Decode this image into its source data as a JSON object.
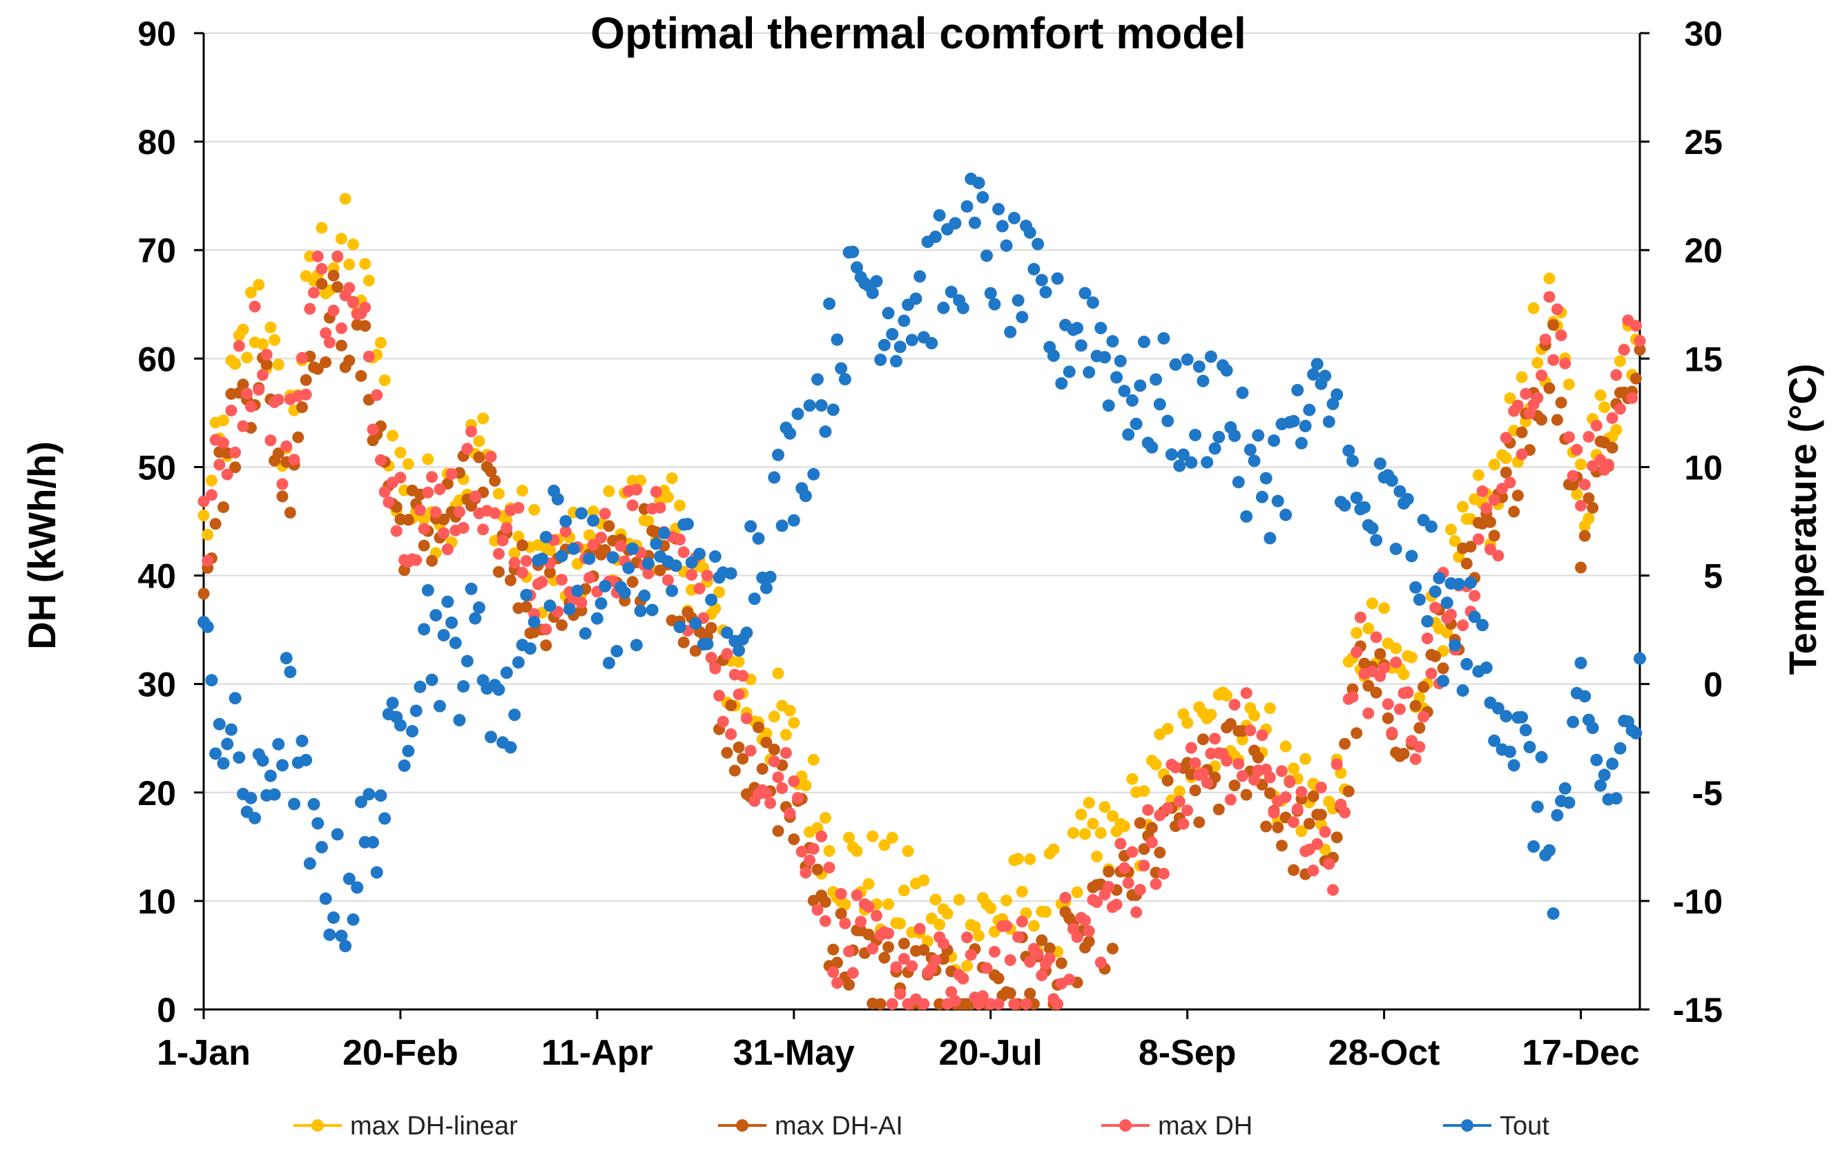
{
  "chart_data": {
    "type": "scatter",
    "title": "Optimal thermal comfort model",
    "ylabel": "DH (kWh/h)",
    "y2label": "Temperature (°C)",
    "xlabel": "",
    "xlim": [
      1,
      366
    ],
    "ylim": [
      0,
      90
    ],
    "y2lim": [
      -15,
      30
    ],
    "grid": true,
    "legend_position": "bottom",
    "x_ticks": [
      {
        "day": 1,
        "label": "1-Jan"
      },
      {
        "day": 51,
        "label": "20-Feb"
      },
      {
        "day": 101,
        "label": "11-Apr"
      },
      {
        "day": 151,
        "label": "31-May"
      },
      {
        "day": 201,
        "label": "20-Jul"
      },
      {
        "day": 251,
        "label": "8-Sep"
      },
      {
        "day": 301,
        "label": "28-Oct"
      },
      {
        "day": 351,
        "label": "17-Dec"
      }
    ],
    "y_ticks": [
      "0",
      "10",
      "20",
      "30",
      "40",
      "50",
      "60",
      "70",
      "80",
      "90"
    ],
    "y2_ticks": [
      "-15",
      "-10",
      "-5",
      "0",
      "5",
      "10",
      "15",
      "20",
      "25",
      "30"
    ],
    "series": [
      {
        "name": "max DH-linear",
        "color": "#FFC000",
        "axis": "left",
        "approx_daily_profile": {
          "days": [
            1,
            8,
            15,
            22,
            29,
            36,
            43,
            50,
            57,
            64,
            71,
            78,
            85,
            92,
            99,
            106,
            113,
            120,
            127,
            134,
            141,
            148,
            155,
            162,
            169,
            176,
            183,
            190,
            197,
            204,
            211,
            218,
            225,
            232,
            239,
            246,
            253,
            260,
            267,
            274,
            281,
            288,
            295,
            302,
            309,
            316,
            323,
            330,
            337,
            344,
            351,
            358,
            365
          ],
          "values": [
            44,
            56,
            66,
            52,
            68,
            71,
            64,
            50,
            46,
            48,
            52,
            45,
            42,
            40,
            42,
            44,
            46,
            44,
            40,
            32,
            28,
            26,
            20,
            14,
            12,
            11,
            9,
            7,
            8,
            9,
            10,
            10,
            14,
            15,
            18,
            22,
            24,
            26,
            28,
            22,
            20,
            18,
            34,
            32,
            30,
            38,
            43,
            48,
            58,
            64,
            48,
            55,
            64
          ]
        }
      },
      {
        "name": "max DH-AI",
        "color": "#C55A11",
        "axis": "left",
        "approx_daily_profile": {
          "days": [
            1,
            8,
            15,
            22,
            29,
            36,
            43,
            50,
            57,
            64,
            71,
            78,
            85,
            92,
            99,
            106,
            113,
            120,
            127,
            134,
            141,
            148,
            155,
            162,
            169,
            176,
            183,
            190,
            197,
            204,
            211,
            218,
            225,
            232,
            239,
            246,
            253,
            260,
            267,
            274,
            281,
            288,
            295,
            302,
            309,
            316,
            323,
            330,
            337,
            344,
            351,
            358,
            365
          ],
          "values": [
            42,
            53,
            60,
            48,
            63,
            64,
            58,
            45,
            44,
            46,
            48,
            42,
            38,
            38,
            40,
            41,
            42,
            40,
            36,
            28,
            22,
            20,
            14,
            6,
            4,
            3,
            2,
            1,
            2,
            2,
            3,
            4,
            6,
            9,
            13,
            17,
            20,
            22,
            24,
            18,
            16,
            15,
            30,
            28,
            26,
            34,
            40,
            44,
            55,
            60,
            45,
            53,
            60
          ]
        }
      },
      {
        "name": "max DH",
        "color": "#FF5B5B",
        "axis": "left",
        "approx_daily_profile": {
          "days": [
            1,
            8,
            15,
            22,
            29,
            36,
            43,
            50,
            57,
            64,
            71,
            78,
            85,
            92,
            99,
            106,
            113,
            120,
            127,
            134,
            141,
            148,
            155,
            162,
            169,
            176,
            183,
            190,
            197,
            204,
            211,
            218,
            225,
            232,
            239,
            246,
            253,
            260,
            267,
            274,
            281,
            288,
            295,
            302,
            309,
            316,
            323,
            330,
            337,
            344,
            351,
            358,
            365
          ],
          "values": [
            43,
            55,
            62,
            50,
            66,
            66,
            60,
            47,
            45,
            47,
            50,
            43,
            40,
            39,
            41,
            43,
            44,
            42,
            38,
            30,
            24,
            22,
            16,
            7,
            5,
            4,
            3,
            2,
            2,
            3,
            4,
            5,
            7,
            10,
            14,
            18,
            21,
            23,
            25,
            19,
            17,
            16,
            32,
            29,
            27,
            36,
            41,
            46,
            57,
            62,
            47,
            54,
            62
          ]
        }
      },
      {
        "name": "Tout",
        "color": "#1F77C8",
        "axis": "right",
        "approx_daily_profile": {
          "days": [
            1,
            8,
            15,
            22,
            29,
            36,
            43,
            50,
            57,
            64,
            71,
            78,
            85,
            92,
            99,
            106,
            113,
            120,
            127,
            134,
            141,
            148,
            155,
            162,
            169,
            176,
            183,
            190,
            197,
            204,
            211,
            218,
            225,
            232,
            239,
            246,
            253,
            260,
            267,
            274,
            281,
            288,
            295,
            302,
            309,
            316,
            323,
            330,
            337,
            344,
            351,
            358,
            365
          ],
          "values": [
            1,
            -3,
            -6,
            -1,
            -8,
            -10,
            -7,
            -3,
            3,
            1,
            2,
            -2,
            5,
            7,
            5,
            3,
            4,
            6,
            4,
            3,
            6,
            9,
            12,
            16,
            19,
            17,
            18,
            19,
            21,
            19,
            18,
            16,
            17,
            15,
            13,
            13,
            12,
            14,
            9,
            10,
            12,
            13,
            7,
            8,
            6,
            3,
            2,
            0,
            -4,
            -8,
            -2,
            -5,
            -1
          ]
        }
      }
    ]
  }
}
